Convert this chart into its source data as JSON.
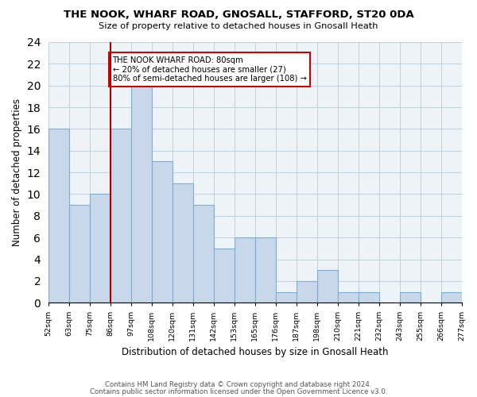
{
  "title": "THE NOOK, WHARF ROAD, GNOSALL, STAFFORD, ST20 0DA",
  "subtitle": "Size of property relative to detached houses in Gnosall Heath",
  "xlabel": "Distribution of detached houses by size in Gnosall Heath",
  "ylabel": "Number of detached properties",
  "footer_line1": "Contains HM Land Registry data © Crown copyright and database right 2024.",
  "footer_line2": "Contains public sector information licensed under the Open Government Licence v3.0.",
  "bin_labels": [
    "52sqm",
    "63sqm",
    "75sqm",
    "86sqm",
    "97sqm",
    "108sqm",
    "120sqm",
    "131sqm",
    "142sqm",
    "153sqm",
    "165sqm",
    "176sqm",
    "187sqm",
    "198sqm",
    "210sqm",
    "221sqm",
    "232sqm",
    "243sqm",
    "255sqm",
    "266sqm",
    "277sqm"
  ],
  "bin_values": [
    16,
    9,
    10,
    16,
    20,
    13,
    11,
    9,
    5,
    6,
    6,
    1,
    2,
    3,
    1,
    1,
    0,
    1,
    0,
    1
  ],
  "bar_color": "#c8d8ea",
  "bar_edge_color": "#7aafd4",
  "grid_color": "#c0cfe0",
  "background_color": "#eef3f8",
  "vline_x": 3,
  "vline_color": "#aa0000",
  "annotation_title": "THE NOOK WHARF ROAD: 80sqm",
  "annotation_line1": "← 20% of detached houses are smaller (27)",
  "annotation_line2": "80% of semi-detached houses are larger (108) →",
  "annotation_box_edge_color": "#cc0000",
  "ylim": [
    0,
    24
  ],
  "yticks": [
    0,
    2,
    4,
    6,
    8,
    10,
    12,
    14,
    16,
    18,
    20,
    22,
    24
  ]
}
